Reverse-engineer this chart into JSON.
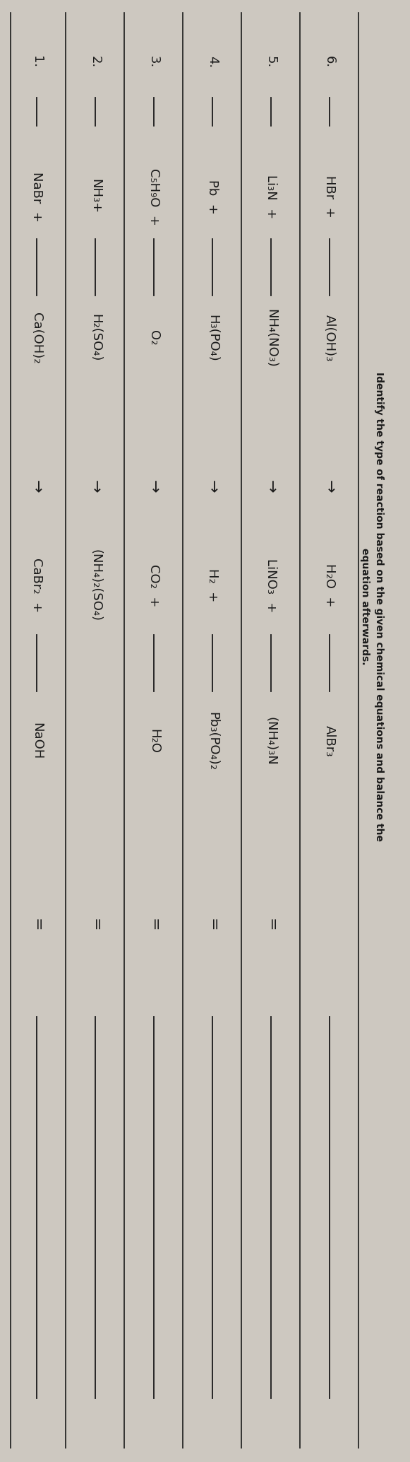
{
  "background_color": "#cdc8c0",
  "text_color": "#1a1a1a",
  "title_line1": "Identify the type of reaction based on the given chemical equations and balance the",
  "title_line2": "equation afterwards.",
  "equations": [
    {
      "number": "1.",
      "part1": "NaBr  +",
      "blank1": true,
      "part2": "Ca(OH)₂",
      "arrow": "→",
      "prod1": "CaBr₂  +",
      "blank2": true,
      "prod2": "NaOH",
      "has_equals": true
    },
    {
      "number": "2.",
      "part1": "NH₃+",
      "blank1": true,
      "part2": "H₂(SO₄)",
      "arrow": "→",
      "prod1": "(NH₄)₂(SO₄)",
      "blank2": false,
      "prod2": "",
      "has_equals": true
    },
    {
      "number": "3.",
      "part1": "C₅H₉O  +",
      "blank1": true,
      "part2": "O₂",
      "arrow": "→",
      "prod1": "CO₂  +",
      "blank2": true,
      "prod2": "H₂O",
      "has_equals": true
    },
    {
      "number": "4.",
      "part1": "Pb  +",
      "blank1": true,
      "part2": "H₃(PO₄)",
      "arrow": "→",
      "prod1": "H₂  +",
      "blank2": true,
      "prod2": "Pb₃(PO₄)₂",
      "has_equals": true
    },
    {
      "number": "5.",
      "part1": "Li₃N  +",
      "blank1": true,
      "part2": "NH₄(NO₃)",
      "arrow": "→",
      "prod1": "LiNO₃  +",
      "blank2": true,
      "prod2": "(NH₄)₃N",
      "has_equals": true
    },
    {
      "number": "6.",
      "part1": "HBr  +",
      "blank1": true,
      "part2": "Al(OH)₃",
      "arrow": "→",
      "prod1": "H₂O  +",
      "blank2": true,
      "prod2": "AlBr₃",
      "has_equals": false
    }
  ]
}
